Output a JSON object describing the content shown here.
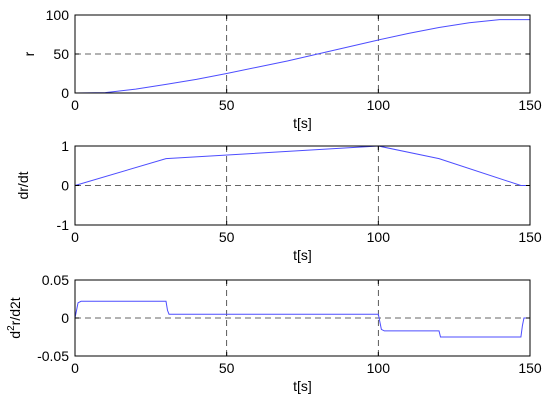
{
  "chart_data": [
    {
      "type": "line",
      "xlabel": "t[s]",
      "ylabel": "r",
      "ylabel_sup": "",
      "ylabel_rest": "",
      "xlim": [
        0,
        150
      ],
      "ylim": [
        0,
        100
      ],
      "xticks": [
        0,
        50,
        100,
        150
      ],
      "yticks": [
        0,
        50,
        100
      ],
      "xtick_labels": [
        "0",
        "50",
        "100",
        "150"
      ],
      "ytick_labels": [
        "0",
        "50",
        "100"
      ],
      "grid": "dashed",
      "series": [
        {
          "color": "#4d4dff",
          "x": [
            0,
            10,
            20,
            30,
            40,
            50,
            60,
            70,
            80,
            90,
            100,
            110,
            120,
            130,
            140,
            150
          ],
          "y": [
            0,
            0.5,
            5,
            11,
            17.5,
            25,
            33,
            41,
            50,
            59,
            68,
            76.5,
            84,
            90,
            94,
            94
          ]
        }
      ]
    },
    {
      "type": "line",
      "xlabel": "t[s]",
      "ylabel": "dr/dt",
      "ylabel_sup": "",
      "ylabel_rest": "",
      "xlim": [
        0,
        150
      ],
      "ylim": [
        -1,
        1
      ],
      "xticks": [
        0,
        50,
        100,
        150
      ],
      "yticks": [
        -1,
        0,
        1
      ],
      "xtick_labels": [
        "0",
        "50",
        "100",
        "150"
      ],
      "ytick_labels": [
        "-1",
        "0",
        "1"
      ],
      "grid": "dashed",
      "series": [
        {
          "color": "#4d4dff",
          "x": [
            0,
            30,
            100,
            120,
            147,
            150
          ],
          "y": [
            0,
            0.68,
            1.0,
            0.68,
            0,
            0
          ]
        }
      ]
    },
    {
      "type": "line",
      "xlabel": "t[s]",
      "ylabel": "d",
      "ylabel_sup": "2",
      "ylabel_rest": "r/d2t",
      "xlim": [
        0,
        150
      ],
      "ylim": [
        -0.05,
        0.05
      ],
      "xticks": [
        0,
        50,
        100,
        150
      ],
      "yticks": [
        -0.05,
        0,
        0.05
      ],
      "xtick_labels": [
        "0",
        "50",
        "100",
        "150"
      ],
      "ytick_labels": [
        "-0.05",
        "0",
        "0.05"
      ],
      "grid": "dashed",
      "series": [
        {
          "color": "#4d4dff",
          "x": [
            0,
            0.5,
            1,
            2,
            30,
            30.5,
            31,
            100,
            100.5,
            101,
            102,
            120,
            120.5,
            147,
            147.5,
            148,
            150
          ],
          "y": [
            0,
            0.01,
            0.02,
            0.022,
            0.022,
            0.01,
            0.005,
            0.005,
            -0.005,
            -0.015,
            -0.017,
            -0.017,
            -0.025,
            -0.025,
            -0.01,
            0,
            0
          ]
        }
      ]
    }
  ]
}
